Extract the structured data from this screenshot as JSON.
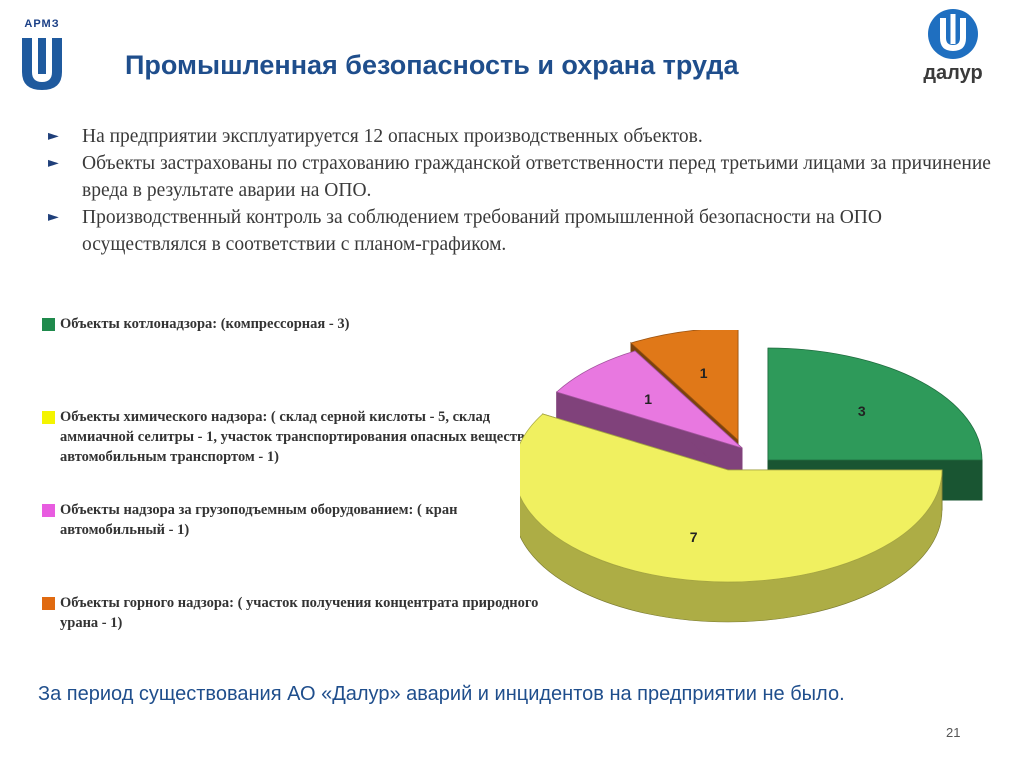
{
  "header": {
    "title": "Промышленная безопасность и охрана труда",
    "logo_left_text": "АРМЗ",
    "logo_right_text": "далур"
  },
  "bullets": [
    "На предприятии эксплуатируется 12 опасных производственных объектов.",
    "Объекты застрахованы по страхованию гражданской ответственности перед третьими лицами за причинение вреда в результате аварии на ОПО.",
    "Производственный контроль за соблюдением требований промышленной безопасности на ОПО осуществлялся в соответствии с планом-графиком."
  ],
  "chart_data": {
    "type": "pie",
    "title": "",
    "legend_position": "left",
    "series": [
      {
        "labels": [
          "Объекты котлонадзора: (компрессорная - 3)",
          "Объекты химического надзора: ( склад серной кислоты - 5, склад аммиачной селитры - 1, участок транспортирования опасных веществ автомобильным транспортом - 1)",
          "Объекты надзора за грузоподъемным оборудованием: ( кран автомобильный - 1)",
          "Объекты горного надзора: ( участок получения концентрата природного урана - 1)"
        ],
        "values": [
          3,
          7,
          1,
          1
        ],
        "data_labels": [
          "3",
          "7",
          "1",
          "1"
        ],
        "colors": [
          "#2e9a5a",
          "#f0f060",
          "#e878e0",
          "#e07818"
        ]
      }
    ]
  },
  "footer": {
    "text": "За период существования АО «Далур» аварий и инцидентов на предприятии не было.",
    "page_number": "21"
  }
}
